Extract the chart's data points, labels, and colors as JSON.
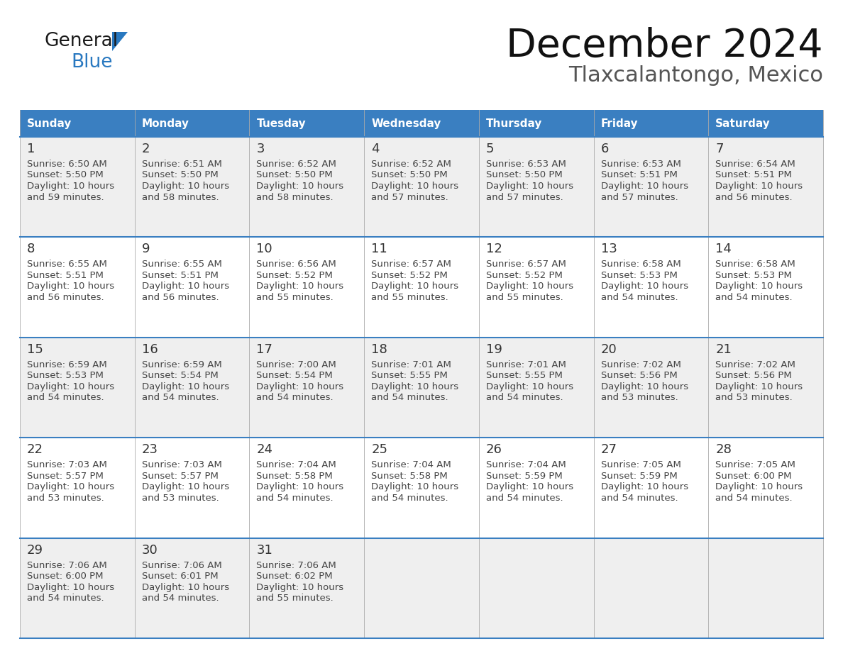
{
  "title": "December 2024",
  "subtitle": "Tlaxcalantongo, Mexico",
  "header_bg_color": "#3A7FC1",
  "header_text_color": "#FFFFFF",
  "header_days": [
    "Sunday",
    "Monday",
    "Tuesday",
    "Wednesday",
    "Thursday",
    "Friday",
    "Saturday"
  ],
  "row_bg_even": "#EFEFEF",
  "row_bg_odd": "#FFFFFF",
  "cell_text_color": "#333333",
  "divider_color": "#3A7FC1",
  "weeks": [
    [
      {
        "day": 1,
        "sunrise": "6:50 AM",
        "sunset": "5:50 PM",
        "daylight_hours": 10,
        "daylight_minutes": 59
      },
      {
        "day": 2,
        "sunrise": "6:51 AM",
        "sunset": "5:50 PM",
        "daylight_hours": 10,
        "daylight_minutes": 58
      },
      {
        "day": 3,
        "sunrise": "6:52 AM",
        "sunset": "5:50 PM",
        "daylight_hours": 10,
        "daylight_minutes": 58
      },
      {
        "day": 4,
        "sunrise": "6:52 AM",
        "sunset": "5:50 PM",
        "daylight_hours": 10,
        "daylight_minutes": 57
      },
      {
        "day": 5,
        "sunrise": "6:53 AM",
        "sunset": "5:50 PM",
        "daylight_hours": 10,
        "daylight_minutes": 57
      },
      {
        "day": 6,
        "sunrise": "6:53 AM",
        "sunset": "5:51 PM",
        "daylight_hours": 10,
        "daylight_minutes": 57
      },
      {
        "day": 7,
        "sunrise": "6:54 AM",
        "sunset": "5:51 PM",
        "daylight_hours": 10,
        "daylight_minutes": 56
      }
    ],
    [
      {
        "day": 8,
        "sunrise": "6:55 AM",
        "sunset": "5:51 PM",
        "daylight_hours": 10,
        "daylight_minutes": 56
      },
      {
        "day": 9,
        "sunrise": "6:55 AM",
        "sunset": "5:51 PM",
        "daylight_hours": 10,
        "daylight_minutes": 56
      },
      {
        "day": 10,
        "sunrise": "6:56 AM",
        "sunset": "5:52 PM",
        "daylight_hours": 10,
        "daylight_minutes": 55
      },
      {
        "day": 11,
        "sunrise": "6:57 AM",
        "sunset": "5:52 PM",
        "daylight_hours": 10,
        "daylight_minutes": 55
      },
      {
        "day": 12,
        "sunrise": "6:57 AM",
        "sunset": "5:52 PM",
        "daylight_hours": 10,
        "daylight_minutes": 55
      },
      {
        "day": 13,
        "sunrise": "6:58 AM",
        "sunset": "5:53 PM",
        "daylight_hours": 10,
        "daylight_minutes": 54
      },
      {
        "day": 14,
        "sunrise": "6:58 AM",
        "sunset": "5:53 PM",
        "daylight_hours": 10,
        "daylight_minutes": 54
      }
    ],
    [
      {
        "day": 15,
        "sunrise": "6:59 AM",
        "sunset": "5:53 PM",
        "daylight_hours": 10,
        "daylight_minutes": 54
      },
      {
        "day": 16,
        "sunrise": "6:59 AM",
        "sunset": "5:54 PM",
        "daylight_hours": 10,
        "daylight_minutes": 54
      },
      {
        "day": 17,
        "sunrise": "7:00 AM",
        "sunset": "5:54 PM",
        "daylight_hours": 10,
        "daylight_minutes": 54
      },
      {
        "day": 18,
        "sunrise": "7:01 AM",
        "sunset": "5:55 PM",
        "daylight_hours": 10,
        "daylight_minutes": 54
      },
      {
        "day": 19,
        "sunrise": "7:01 AM",
        "sunset": "5:55 PM",
        "daylight_hours": 10,
        "daylight_minutes": 54
      },
      {
        "day": 20,
        "sunrise": "7:02 AM",
        "sunset": "5:56 PM",
        "daylight_hours": 10,
        "daylight_minutes": 53
      },
      {
        "day": 21,
        "sunrise": "7:02 AM",
        "sunset": "5:56 PM",
        "daylight_hours": 10,
        "daylight_minutes": 53
      }
    ],
    [
      {
        "day": 22,
        "sunrise": "7:03 AM",
        "sunset": "5:57 PM",
        "daylight_hours": 10,
        "daylight_minutes": 53
      },
      {
        "day": 23,
        "sunrise": "7:03 AM",
        "sunset": "5:57 PM",
        "daylight_hours": 10,
        "daylight_minutes": 53
      },
      {
        "day": 24,
        "sunrise": "7:04 AM",
        "sunset": "5:58 PM",
        "daylight_hours": 10,
        "daylight_minutes": 54
      },
      {
        "day": 25,
        "sunrise": "7:04 AM",
        "sunset": "5:58 PM",
        "daylight_hours": 10,
        "daylight_minutes": 54
      },
      {
        "day": 26,
        "sunrise": "7:04 AM",
        "sunset": "5:59 PM",
        "daylight_hours": 10,
        "daylight_minutes": 54
      },
      {
        "day": 27,
        "sunrise": "7:05 AM",
        "sunset": "5:59 PM",
        "daylight_hours": 10,
        "daylight_minutes": 54
      },
      {
        "day": 28,
        "sunrise": "7:05 AM",
        "sunset": "6:00 PM",
        "daylight_hours": 10,
        "daylight_minutes": 54
      }
    ],
    [
      {
        "day": 29,
        "sunrise": "7:06 AM",
        "sunset": "6:00 PM",
        "daylight_hours": 10,
        "daylight_minutes": 54
      },
      {
        "day": 30,
        "sunrise": "7:06 AM",
        "sunset": "6:01 PM",
        "daylight_hours": 10,
        "daylight_minutes": 54
      },
      {
        "day": 31,
        "sunrise": "7:06 AM",
        "sunset": "6:02 PM",
        "daylight_hours": 10,
        "daylight_minutes": 55
      },
      null,
      null,
      null,
      null
    ]
  ]
}
